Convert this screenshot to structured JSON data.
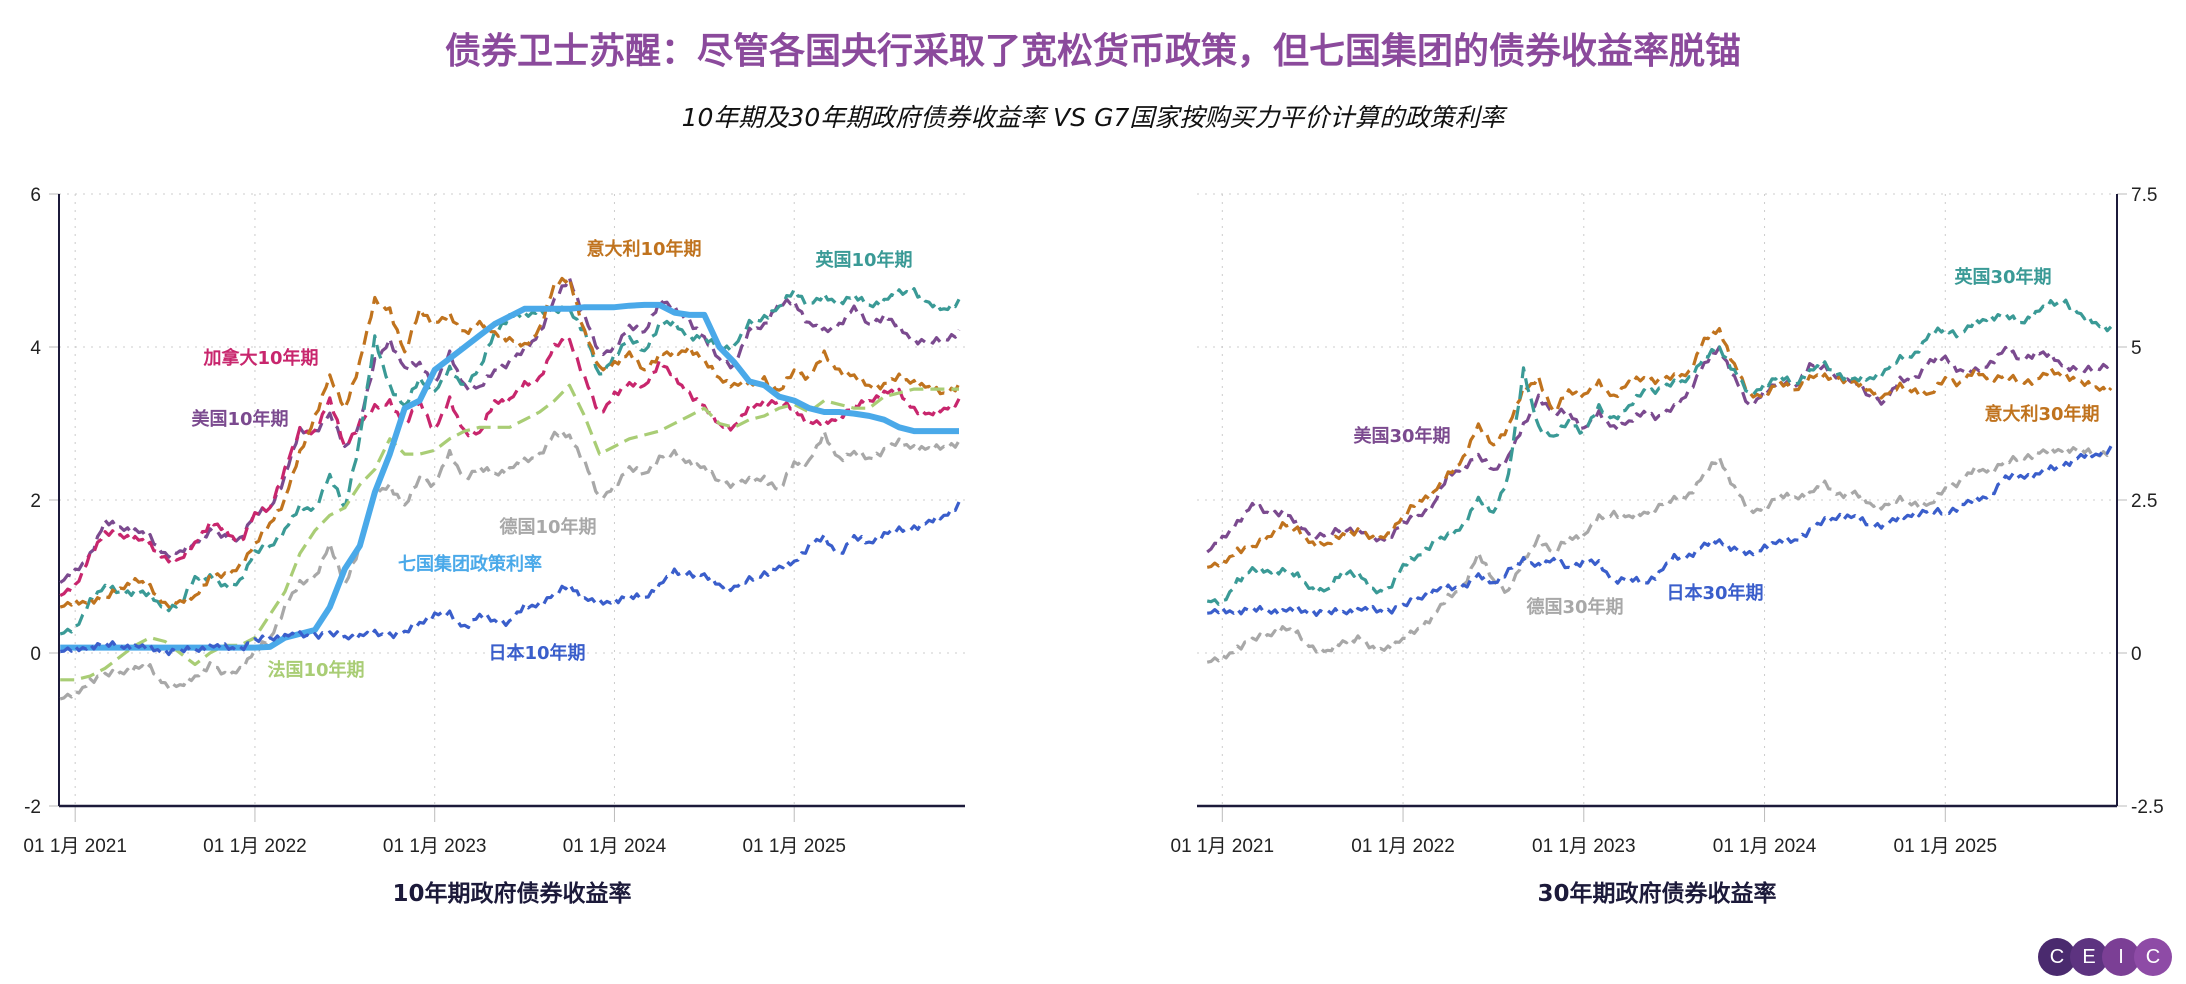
{
  "header": {
    "title": "债券卫士苏醒：尽管各国央行采取了宽松货币政策，但七国集团的债券收益率脱锚",
    "subtitle": "10年期及30年期政府债券收益率 VS G7国家按购买力平价计算的政策利率"
  },
  "logo": {
    "letters": [
      "C",
      "E",
      "I",
      "C"
    ],
    "colors": [
      "#4a2a6e",
      "#5d3380",
      "#7b3f95",
      "#8e4ba6"
    ]
  },
  "chart_data": [
    {
      "type": "line",
      "xlabel": "10年期政府债券收益率",
      "ylim": [
        -2,
        6
      ],
      "yticks": [
        "6",
        "4",
        "2",
        "0",
        "-2"
      ],
      "ytick_values": [
        6,
        4,
        2,
        0,
        -2
      ],
      "xticks": [
        "01 1月 2021",
        "01 1月 2022",
        "01 1月 2023",
        "01 1月 2024",
        "01 1月 2025"
      ],
      "xtick_dates": [
        "2021-01",
        "2022-01",
        "2023-01",
        "2024-01",
        "2025-01"
      ],
      "xlim": [
        "2020-12",
        "2025-12"
      ],
      "x_start": "2020-12",
      "x_step": "1 month",
      "grid": true,
      "y_axis": "left",
      "series": [
        {
          "name": "美国10年期",
          "color": "#7b4a8f",
          "style": "dashed",
          "values": [
            0.92,
            1.05,
            1.3,
            1.7,
            1.65,
            1.6,
            1.5,
            1.3,
            1.3,
            1.45,
            1.6,
            1.5,
            1.5,
            1.8,
            1.9,
            2.3,
            2.9,
            2.9,
            3.1,
            2.7,
            3.0,
            3.8,
            4.1,
            3.7,
            3.8,
            3.5,
            3.9,
            3.5,
            3.45,
            3.7,
            3.8,
            3.95,
            4.2,
            4.6,
            4.9,
            4.4,
            3.9,
            4.0,
            4.25,
            4.2,
            4.6,
            4.5,
            4.35,
            4.1,
            3.85,
            3.75,
            4.2,
            4.3,
            4.55,
            4.6,
            4.3,
            4.2,
            4.3,
            4.5,
            4.3,
            4.4,
            4.25,
            4.1,
            4.05,
            4.1,
            4.2
          ]
        },
        {
          "name": "加拿大10年期",
          "color": "#c8266d",
          "style": "dashed",
          "values": [
            0.75,
            0.85,
            1.3,
            1.55,
            1.55,
            1.5,
            1.4,
            1.25,
            1.2,
            1.45,
            1.7,
            1.6,
            1.45,
            1.8,
            1.9,
            2.4,
            2.9,
            2.9,
            3.3,
            2.7,
            3.0,
            3.2,
            3.3,
            2.95,
            3.3,
            2.9,
            3.3,
            2.9,
            2.85,
            3.3,
            3.3,
            3.5,
            3.6,
            4.0,
            4.1,
            3.6,
            3.1,
            3.4,
            3.5,
            3.5,
            3.8,
            3.6,
            3.4,
            3.2,
            3.0,
            2.95,
            3.2,
            3.3,
            3.25,
            3.2,
            3.0,
            3.0,
            3.1,
            3.2,
            3.3,
            3.4,
            3.4,
            3.2,
            3.1,
            3.2,
            3.3
          ]
        },
        {
          "name": "英国10年期",
          "color": "#3a9a96",
          "style": "dashed",
          "values": [
            0.25,
            0.3,
            0.7,
            0.85,
            0.8,
            0.8,
            0.75,
            0.6,
            0.6,
            1.0,
            1.0,
            0.85,
            0.95,
            1.3,
            1.4,
            1.6,
            1.9,
            1.9,
            2.3,
            1.9,
            2.8,
            4.1,
            3.5,
            3.2,
            3.6,
            3.4,
            3.7,
            3.5,
            3.7,
            4.2,
            4.4,
            4.4,
            4.5,
            4.45,
            4.5,
            4.2,
            3.6,
            3.9,
            4.1,
            3.95,
            4.3,
            4.3,
            4.15,
            4.1,
            4.0,
            4.0,
            4.3,
            4.4,
            4.5,
            4.75,
            4.55,
            4.65,
            4.6,
            4.65,
            4.55,
            4.6,
            4.7,
            4.75,
            4.55,
            4.5,
            4.6
          ]
        },
        {
          "name": "意大利10年期",
          "color": "#c0731e",
          "style": "dashed",
          "values": [
            0.6,
            0.65,
            0.7,
            0.7,
            0.85,
            0.95,
            0.85,
            0.65,
            0.65,
            0.75,
            1.0,
            1.0,
            1.15,
            1.4,
            1.7,
            2.0,
            2.6,
            3.1,
            3.6,
            3.2,
            3.8,
            4.6,
            4.5,
            3.9,
            4.5,
            4.3,
            4.4,
            4.2,
            4.3,
            4.2,
            4.1,
            4.0,
            4.25,
            4.8,
            4.9,
            4.2,
            3.7,
            3.8,
            3.9,
            3.7,
            3.9,
            3.9,
            4.0,
            3.8,
            3.6,
            3.5,
            3.5,
            3.6,
            3.4,
            3.7,
            3.6,
            3.9,
            3.7,
            3.6,
            3.5,
            3.5,
            3.6,
            3.55,
            3.45,
            3.4,
            3.5
          ]
        },
        {
          "name": "德国10年期",
          "color": "#a8a8a8",
          "style": "dashed",
          "values": [
            -0.6,
            -0.55,
            -0.35,
            -0.3,
            -0.25,
            -0.2,
            -0.2,
            -0.4,
            -0.45,
            -0.3,
            -0.15,
            -0.3,
            -0.2,
            0.0,
            0.2,
            0.6,
            0.9,
            1.0,
            1.4,
            0.9,
            1.4,
            2.1,
            2.2,
            1.9,
            2.3,
            2.2,
            2.6,
            2.3,
            2.4,
            2.35,
            2.4,
            2.5,
            2.6,
            2.85,
            2.85,
            2.5,
            2.0,
            2.2,
            2.4,
            2.35,
            2.55,
            2.6,
            2.5,
            2.4,
            2.25,
            2.2,
            2.25,
            2.3,
            2.1,
            2.5,
            2.5,
            2.85,
            2.55,
            2.6,
            2.55,
            2.65,
            2.75,
            2.7,
            2.65,
            2.7,
            2.75
          ]
        },
        {
          "name": "法国10年期",
          "color": "#a9cd75",
          "style": "dashed",
          "values": [
            -0.35,
            -0.35,
            -0.3,
            -0.2,
            -0.05,
            0.1,
            0.2,
            0.15,
            0.0,
            -0.15,
            0.0,
            0.1,
            0.1,
            0.2,
            0.5,
            0.8,
            1.3,
            1.6,
            1.8,
            1.9,
            2.2,
            2.4,
            2.8,
            2.6,
            2.6,
            2.65,
            2.8,
            2.9,
            2.95,
            2.95,
            2.95,
            3.05,
            3.15,
            3.3,
            3.5,
            3.1,
            2.6,
            2.7,
            2.8,
            2.85,
            2.9,
            3.0,
            3.1,
            3.2,
            3.0,
            2.95,
            3.05,
            3.1,
            3.2,
            3.25,
            3.15,
            3.3,
            3.25,
            3.2,
            3.2,
            3.35,
            3.4,
            3.45,
            3.45,
            3.45,
            3.45
          ]
        },
        {
          "name": "七国集团政策利率",
          "color": "#4aa9e9",
          "style": "solid",
          "values": [
            0.07,
            0.07,
            0.07,
            0.07,
            0.07,
            0.07,
            0.07,
            0.07,
            0.07,
            0.07,
            0.07,
            0.07,
            0.07,
            0.07,
            0.08,
            0.2,
            0.25,
            0.3,
            0.6,
            1.1,
            1.4,
            2.1,
            2.6,
            3.2,
            3.3,
            3.7,
            3.85,
            4.0,
            4.15,
            4.3,
            4.4,
            4.5,
            4.5,
            4.5,
            4.5,
            4.52,
            4.52,
            4.52,
            4.54,
            4.55,
            4.55,
            4.45,
            4.42,
            4.42,
            4.0,
            3.8,
            3.55,
            3.5,
            3.35,
            3.3,
            3.2,
            3.15,
            3.15,
            3.13,
            3.1,
            3.05,
            2.95,
            2.9,
            2.9,
            2.9,
            2.9
          ]
        },
        {
          "name": "日本10年期",
          "color": "#3a5ecb",
          "style": "dashed",
          "values": [
            0.02,
            0.04,
            0.1,
            0.1,
            0.1,
            0.08,
            0.06,
            0.03,
            0.02,
            0.05,
            0.08,
            0.07,
            0.07,
            0.15,
            0.2,
            0.22,
            0.23,
            0.24,
            0.24,
            0.22,
            0.22,
            0.25,
            0.25,
            0.25,
            0.4,
            0.5,
            0.5,
            0.35,
            0.47,
            0.43,
            0.4,
            0.6,
            0.65,
            0.75,
            0.9,
            0.7,
            0.65,
            0.7,
            0.72,
            0.73,
            0.88,
            1.05,
            1.05,
            1.0,
            0.9,
            0.85,
            0.95,
            1.05,
            1.1,
            1.2,
            1.4,
            1.5,
            1.3,
            1.5,
            1.45,
            1.55,
            1.6,
            1.65,
            1.7,
            1.8,
            1.95
          ]
        }
      ]
    },
    {
      "type": "line",
      "xlabel": "30年期政府债券收益率",
      "ylim": [
        -2.5,
        7.5
      ],
      "yticks": [
        "7.5",
        "5",
        "2.5",
        "0",
        "-2.5"
      ],
      "ytick_values": [
        7.5,
        5,
        2.5,
        0,
        -2.5
      ],
      "xticks": [
        "01 1月 2021",
        "01 1月 2022",
        "01 1月 2023",
        "01 1月 2024",
        "01 1月 2025"
      ],
      "xtick_dates": [
        "2021-01",
        "2022-01",
        "2023-01",
        "2024-01",
        "2025-01"
      ],
      "xlim": [
        "2020-12",
        "2025-12"
      ],
      "x_start": "2020-12",
      "x_step": "1 month",
      "grid": true,
      "y_axis": "right",
      "series": [
        {
          "name": "美国30年期",
          "color": "#7b4a8f",
          "style": "dashed",
          "values": [
            1.65,
            1.85,
            2.15,
            2.4,
            2.3,
            2.3,
            2.1,
            1.95,
            1.9,
            2.05,
            2.0,
            1.85,
            1.9,
            2.1,
            2.25,
            2.4,
            2.9,
            3.05,
            3.2,
            3.0,
            3.2,
            3.7,
            4.2,
            3.9,
            3.95,
            3.65,
            3.9,
            3.7,
            3.75,
            3.95,
            3.85,
            4.0,
            4.3,
            4.7,
            5.0,
            4.5,
            4.0,
            4.3,
            4.4,
            4.35,
            4.7,
            4.65,
            4.5,
            4.4,
            4.2,
            4.1,
            4.45,
            4.5,
            4.75,
            4.85,
            4.6,
            4.6,
            4.75,
            4.95,
            4.8,
            4.9,
            4.85,
            4.7,
            4.6,
            4.65,
            4.75
          ]
        },
        {
          "name": "意大利30年期",
          "color": "#c0731e",
          "style": "dashed",
          "values": [
            1.4,
            1.45,
            1.7,
            1.7,
            1.9,
            2.1,
            2.0,
            1.8,
            1.75,
            1.95,
            2.0,
            1.85,
            1.95,
            2.2,
            2.5,
            2.6,
            2.9,
            3.2,
            3.7,
            3.4,
            3.7,
            4.3,
            4.5,
            3.9,
            4.3,
            4.2,
            4.4,
            4.2,
            4.4,
            4.5,
            4.45,
            4.5,
            4.6,
            5.1,
            5.3,
            4.7,
            4.2,
            4.25,
            4.4,
            4.3,
            4.5,
            4.5,
            4.5,
            4.4,
            4.3,
            4.2,
            4.35,
            4.3,
            4.2,
            4.5,
            4.4,
            4.6,
            4.5,
            4.5,
            4.45,
            4.45,
            4.6,
            4.55,
            4.4,
            4.35,
            4.3
          ]
        },
        {
          "name": "英国30年期",
          "color": "#3a9a96",
          "style": "dashed",
          "values": [
            0.85,
            0.8,
            1.2,
            1.35,
            1.35,
            1.35,
            1.25,
            1.05,
            1.0,
            1.35,
            1.3,
            1.0,
            1.05,
            1.4,
            1.6,
            1.8,
            1.9,
            2.1,
            2.5,
            2.3,
            2.9,
            4.6,
            3.7,
            3.5,
            3.8,
            3.6,
            4.0,
            3.85,
            4.0,
            4.3,
            4.3,
            4.4,
            4.5,
            4.8,
            5.0,
            4.6,
            4.2,
            4.4,
            4.5,
            4.4,
            4.6,
            4.7,
            4.55,
            4.45,
            4.5,
            4.6,
            4.8,
            4.9,
            5.2,
            5.3,
            5.2,
            5.4,
            5.5,
            5.5,
            5.4,
            5.55,
            5.7,
            5.75,
            5.5,
            5.4,
            5.3
          ]
        },
        {
          "name": "德国30年期",
          "color": "#a8a8a8",
          "style": "dashed",
          "values": [
            -0.15,
            -0.1,
            0.1,
            0.2,
            0.3,
            0.4,
            0.3,
            0.1,
            0.0,
            0.2,
            0.25,
            0.05,
            0.1,
            0.2,
            0.4,
            0.6,
            0.9,
            1.1,
            1.6,
            1.2,
            1.0,
            1.5,
            1.9,
            1.6,
            1.9,
            1.9,
            2.2,
            2.3,
            2.2,
            2.3,
            2.4,
            2.5,
            2.6,
            2.9,
            3.2,
            2.7,
            2.3,
            2.4,
            2.55,
            2.55,
            2.6,
            2.75,
            2.6,
            2.6,
            2.45,
            2.4,
            2.5,
            2.45,
            2.4,
            2.7,
            2.8,
            3.0,
            3.0,
            3.1,
            3.2,
            3.25,
            3.3,
            3.35,
            3.3,
            3.25,
            3.3
          ]
        },
        {
          "name": "日本30年期",
          "color": "#3a5ecb",
          "style": "dashed",
          "values": [
            0.65,
            0.68,
            0.7,
            0.7,
            0.7,
            0.68,
            0.7,
            0.68,
            0.65,
            0.68,
            0.7,
            0.7,
            0.7,
            0.75,
            0.9,
            1.0,
            1.05,
            1.1,
            1.25,
            1.15,
            1.35,
            1.5,
            1.45,
            1.5,
            1.4,
            1.5,
            1.45,
            1.2,
            1.2,
            1.15,
            1.3,
            1.55,
            1.6,
            1.75,
            1.85,
            1.7,
            1.6,
            1.75,
            1.8,
            1.85,
            2.0,
            2.15,
            2.25,
            2.2,
            2.1,
            2.1,
            2.2,
            2.3,
            2.3,
            2.3,
            2.4,
            2.5,
            2.6,
            2.85,
            2.9,
            2.9,
            3.0,
            3.1,
            3.2,
            3.25,
            3.35
          ]
        }
      ]
    }
  ]
}
